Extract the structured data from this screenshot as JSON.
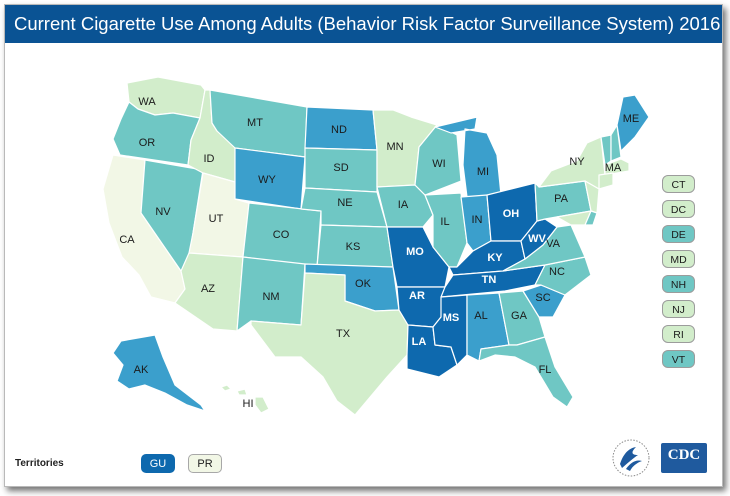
{
  "title": "Current Cigarette Use Among Adults (Behavior Risk Factor Surveillance System) 2016",
  "colors": {
    "lightest": "#f2f7e6",
    "light": "#d2edcb",
    "mid_light": "#a6dcc3",
    "mid": "#6fc7c4",
    "mid_dark": "#3b9fcc",
    "darkest": "#0e69ae"
  },
  "states": {
    "WA": {
      "label": "WA",
      "color": "light"
    },
    "OR": {
      "label": "OR",
      "color": "mid"
    },
    "CA": {
      "label": "CA",
      "color": "lightest"
    },
    "NV": {
      "label": "NV",
      "color": "mid"
    },
    "ID": {
      "label": "ID",
      "color": "light"
    },
    "UT": {
      "label": "UT",
      "color": "lightest"
    },
    "AZ": {
      "label": "AZ",
      "color": "light"
    },
    "MT": {
      "label": "MT",
      "color": "mid"
    },
    "WY": {
      "label": "WY",
      "color": "mid_dark"
    },
    "CO": {
      "label": "CO",
      "color": "mid"
    },
    "NM": {
      "label": "NM",
      "color": "mid"
    },
    "ND": {
      "label": "ND",
      "color": "mid_dark"
    },
    "SD": {
      "label": "SD",
      "color": "mid"
    },
    "NE": {
      "label": "NE",
      "color": "mid"
    },
    "KS": {
      "label": "KS",
      "color": "mid"
    },
    "OK": {
      "label": "OK",
      "color": "mid_dark"
    },
    "TX": {
      "label": "TX",
      "color": "light"
    },
    "MN": {
      "label": "MN",
      "color": "light"
    },
    "IA": {
      "label": "IA",
      "color": "mid"
    },
    "MO": {
      "label": "MO",
      "color": "darkest"
    },
    "AR": {
      "label": "AR",
      "color": "darkest"
    },
    "LA": {
      "label": "LA",
      "color": "darkest"
    },
    "WI": {
      "label": "WI",
      "color": "mid"
    },
    "IL": {
      "label": "IL",
      "color": "mid"
    },
    "MI": {
      "label": "MI",
      "color": "mid_dark"
    },
    "IN": {
      "label": "IN",
      "color": "mid_dark"
    },
    "OH": {
      "label": "OH",
      "color": "darkest"
    },
    "KY": {
      "label": "KY",
      "color": "darkest"
    },
    "TN": {
      "label": "TN",
      "color": "darkest"
    },
    "MS": {
      "label": "MS",
      "color": "darkest"
    },
    "AL": {
      "label": "AL",
      "color": "mid_dark"
    },
    "GA": {
      "label": "GA",
      "color": "mid"
    },
    "FL": {
      "label": "FL",
      "color": "mid"
    },
    "SC": {
      "label": "SC",
      "color": "mid_dark"
    },
    "NC": {
      "label": "NC",
      "color": "mid"
    },
    "VA": {
      "label": "VA",
      "color": "mid"
    },
    "WV": {
      "label": "WV",
      "color": "darkest"
    },
    "PA": {
      "label": "PA",
      "color": "mid"
    },
    "NY": {
      "label": "NY",
      "color": "light"
    },
    "VT": {
      "label": "",
      "color": "mid"
    },
    "NH": {
      "label": "",
      "color": "mid"
    },
    "ME": {
      "label": "ME",
      "color": "mid_dark"
    },
    "MA": {
      "label": "MA",
      "color": "light"
    },
    "AK": {
      "label": "AK",
      "color": "mid_dark"
    },
    "HI": {
      "label": "HI",
      "color": "light"
    }
  },
  "small_states": [
    {
      "label": "CT",
      "color": "light"
    },
    {
      "label": "DC",
      "color": "light"
    },
    {
      "label": "DE",
      "color": "mid"
    },
    {
      "label": "MD",
      "color": "light"
    },
    {
      "label": "NH",
      "color": "mid"
    },
    {
      "label": "NJ",
      "color": "light"
    },
    {
      "label": "RI",
      "color": "light"
    },
    {
      "label": "VT",
      "color": "mid"
    }
  ],
  "territories": {
    "label": "Territories",
    "items": [
      {
        "label": "GU",
        "color": "darkest"
      },
      {
        "label": "PR",
        "color": "lightest"
      }
    ]
  },
  "logos": {
    "hhs": "hhs-eagle-icon",
    "cdc": "CDC"
  }
}
